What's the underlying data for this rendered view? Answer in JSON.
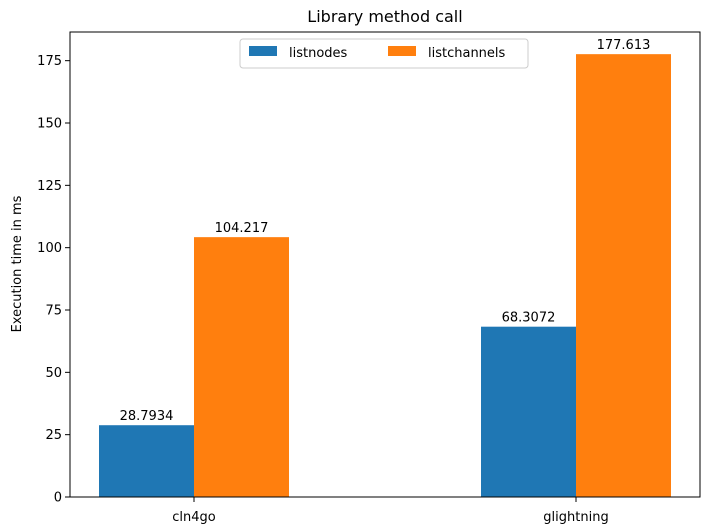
{
  "chart_data": {
    "type": "bar",
    "title": "Library method call",
    "xlabel": "",
    "ylabel": "Execution time in ms",
    "categories": [
      "cln4go",
      "glightning"
    ],
    "series": [
      {
        "name": "listnodes",
        "color": "#1f77b4",
        "values": [
          28.7934,
          68.3072
        ],
        "labels": [
          "28.7934",
          "68.3072"
        ]
      },
      {
        "name": "listchannels",
        "color": "#ff7f0e",
        "values": [
          104.217,
          177.613
        ],
        "labels": [
          "104.217",
          "177.613"
        ]
      }
    ],
    "ylim": [
      0,
      186.5
    ],
    "yticks": [
      0,
      25,
      50,
      75,
      100,
      125,
      150,
      175
    ],
    "legend": "upper-center",
    "grid": false
  }
}
